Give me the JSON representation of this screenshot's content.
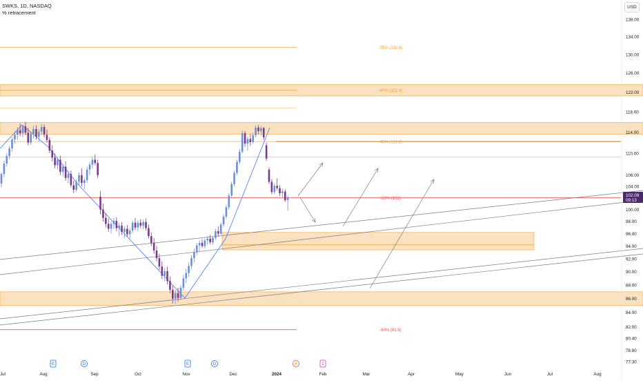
{
  "header": {
    "symbol": "SWKS, 1D, NASDAQ",
    "indicator": "% retracement"
  },
  "currency_button": "USD",
  "last_price": {
    "value": "102.09",
    "countdown": "09:13",
    "color": "#4a2a6b"
  },
  "colors": {
    "up": "#6c8fd8",
    "down": "#7a3a8a",
    "zone_fill": "#f5c98a",
    "zone_stroke": "#f0a030",
    "fib_line": "#f2b24a",
    "fib_label": "#f0a030",
    "red_level": "#f05050",
    "trend_line": "#787b86",
    "arrow": "#787b86",
    "zigzag": "#2962ff",
    "event_earnings": "#2a6fd6",
    "event_split": "#e040a0"
  },
  "chart_data": {
    "type": "candlestick",
    "y_axis": {
      "min": 76.5,
      "max": 140,
      "scale": "log",
      "tick_labels": [
        "138.00",
        "134.00",
        "130.00",
        "126.00",
        "122.00",
        "118.00",
        "114.00",
        "110.00",
        "106.00",
        "104.00",
        "102.00",
        "100.00",
        "98.00",
        "96.00",
        "94.00",
        "92.00",
        "90.00",
        "88.00",
        "86.00",
        "84.00",
        "82.00",
        "80.40",
        "78.80",
        "77.30"
      ]
    },
    "x_axis": {
      "tick_labels": [
        "Jul",
        "Aug",
        "Sep",
        "Oct",
        "Nov",
        "Dec",
        "2024",
        "Feb",
        "Mar",
        "Apr",
        "May",
        "Jun",
        "Jul",
        "Aug"
      ]
    },
    "fib_levels": [
      {
        "label": "-35% (131.6)",
        "price": 131.6
      },
      {
        "label": "-40% (122.4)",
        "price": 122.4
      },
      {
        "label": "-45% (112.2)",
        "price": 112.2
      },
      {
        "label": "-50% (102)",
        "price": 102.0
      },
      {
        "label": "-60% (81.6)",
        "price": 81.6
      }
    ],
    "zones": [
      {
        "from": 121.2,
        "to": 123.6
      },
      {
        "from": 113.6,
        "to": 115.9
      },
      {
        "from": 93.4,
        "to": 96.2
      },
      {
        "from": 85.0,
        "to": 87.0
      }
    ],
    "events": [
      "E",
      "D",
      "E",
      "D",
      "⚡",
      "↧"
    ],
    "candles": [
      {
        "o": 104.5,
        "h": 106.5,
        "l": 103.8,
        "c": 106.2
      },
      {
        "o": 106.2,
        "h": 108.6,
        "l": 105.6,
        "c": 108.1
      },
      {
        "o": 108.1,
        "h": 110.0,
        "l": 107.5,
        "c": 109.5
      },
      {
        "o": 109.5,
        "h": 111.4,
        "l": 108.9,
        "c": 110.9
      },
      {
        "o": 110.9,
        "h": 113.0,
        "l": 110.3,
        "c": 112.6
      },
      {
        "o": 112.6,
        "h": 114.2,
        "l": 111.8,
        "c": 113.5
      },
      {
        "o": 113.5,
        "h": 115.0,
        "l": 112.5,
        "c": 114.4
      },
      {
        "o": 114.4,
        "h": 115.7,
        "l": 113.2,
        "c": 113.8
      },
      {
        "o": 113.8,
        "h": 115.4,
        "l": 113.0,
        "c": 115.1
      },
      {
        "o": 115.1,
        "h": 116.0,
        "l": 113.4,
        "c": 113.9
      },
      {
        "o": 113.9,
        "h": 114.8,
        "l": 111.5,
        "c": 112.0
      },
      {
        "o": 112.0,
        "h": 114.2,
        "l": 111.6,
        "c": 113.7
      },
      {
        "o": 113.7,
        "h": 115.2,
        "l": 112.8,
        "c": 114.6
      },
      {
        "o": 114.6,
        "h": 115.3,
        "l": 112.6,
        "c": 113.1
      },
      {
        "o": 113.1,
        "h": 114.6,
        "l": 112.2,
        "c": 114.1
      },
      {
        "o": 114.1,
        "h": 115.6,
        "l": 113.4,
        "c": 115.0
      },
      {
        "o": 115.0,
        "h": 115.5,
        "l": 113.0,
        "c": 113.5
      },
      {
        "o": 113.5,
        "h": 114.5,
        "l": 112.0,
        "c": 112.5
      },
      {
        "o": 112.5,
        "h": 113.0,
        "l": 110.0,
        "c": 110.5
      },
      {
        "o": 110.5,
        "h": 111.5,
        "l": 108.5,
        "c": 109.2
      },
      {
        "o": 109.2,
        "h": 110.0,
        "l": 107.2,
        "c": 107.8
      },
      {
        "o": 107.8,
        "h": 109.2,
        "l": 107.0,
        "c": 108.8
      },
      {
        "o": 108.8,
        "h": 109.5,
        "l": 106.0,
        "c": 106.6
      },
      {
        "o": 106.6,
        "h": 108.0,
        "l": 105.8,
        "c": 107.5
      },
      {
        "o": 107.5,
        "h": 108.5,
        "l": 105.0,
        "c": 105.5
      },
      {
        "o": 105.5,
        "h": 106.8,
        "l": 104.5,
        "c": 106.2
      },
      {
        "o": 106.2,
        "h": 106.8,
        "l": 103.8,
        "c": 104.2
      },
      {
        "o": 104.2,
        "h": 105.0,
        "l": 102.8,
        "c": 103.4
      },
      {
        "o": 103.4,
        "h": 105.2,
        "l": 103.0,
        "c": 104.8
      },
      {
        "o": 104.8,
        "h": 106.5,
        "l": 104.2,
        "c": 106.0
      },
      {
        "o": 106.0,
        "h": 107.2,
        "l": 104.0,
        "c": 104.6
      },
      {
        "o": 104.6,
        "h": 105.5,
        "l": 103.5,
        "c": 105.1
      },
      {
        "o": 105.1,
        "h": 107.5,
        "l": 104.6,
        "c": 107.0
      },
      {
        "o": 107.0,
        "h": 108.4,
        "l": 106.0,
        "c": 107.9
      },
      {
        "o": 107.9,
        "h": 109.4,
        "l": 107.2,
        "c": 108.8
      },
      {
        "o": 108.8,
        "h": 109.8,
        "l": 107.8,
        "c": 108.2
      },
      {
        "o": 108.2,
        "h": 108.8,
        "l": 105.5,
        "c": 106.0
      },
      {
        "o": 102.2,
        "h": 103.2,
        "l": 99.2,
        "c": 100.0
      },
      {
        "o": 100.0,
        "h": 101.0,
        "l": 98.0,
        "c": 98.6
      },
      {
        "o": 98.6,
        "h": 99.4,
        "l": 97.0,
        "c": 97.6
      },
      {
        "o": 97.6,
        "h": 98.5,
        "l": 96.3,
        "c": 96.8
      },
      {
        "o": 96.8,
        "h": 98.0,
        "l": 96.0,
        "c": 97.6
      },
      {
        "o": 97.6,
        "h": 98.6,
        "l": 96.8,
        "c": 98.1
      },
      {
        "o": 98.1,
        "h": 98.7,
        "l": 96.4,
        "c": 96.9
      },
      {
        "o": 96.9,
        "h": 97.8,
        "l": 95.6,
        "c": 97.3
      },
      {
        "o": 97.3,
        "h": 97.9,
        "l": 95.8,
        "c": 96.3
      },
      {
        "o": 96.3,
        "h": 97.2,
        "l": 95.3,
        "c": 96.8
      },
      {
        "o": 96.8,
        "h": 97.4,
        "l": 95.5,
        "c": 95.9
      },
      {
        "o": 95.9,
        "h": 96.9,
        "l": 95.2,
        "c": 96.5
      },
      {
        "o": 96.5,
        "h": 98.2,
        "l": 96.1,
        "c": 97.8
      },
      {
        "o": 97.8,
        "h": 98.6,
        "l": 96.6,
        "c": 97.0
      },
      {
        "o": 97.0,
        "h": 98.2,
        "l": 96.4,
        "c": 97.8
      },
      {
        "o": 97.8,
        "h": 98.4,
        "l": 96.9,
        "c": 97.3
      },
      {
        "o": 97.3,
        "h": 98.3,
        "l": 96.7,
        "c": 97.9
      },
      {
        "o": 97.9,
        "h": 98.5,
        "l": 96.5,
        "c": 96.9
      },
      {
        "o": 96.9,
        "h": 97.5,
        "l": 95.2,
        "c": 95.6
      },
      {
        "o": 95.6,
        "h": 96.2,
        "l": 94.0,
        "c": 94.5
      },
      {
        "o": 94.5,
        "h": 95.3,
        "l": 92.8,
        "c": 93.3
      },
      {
        "o": 93.3,
        "h": 94.0,
        "l": 91.6,
        "c": 92.1
      },
      {
        "o": 92.1,
        "h": 92.8,
        "l": 90.3,
        "c": 90.8
      },
      {
        "o": 90.8,
        "h": 91.6,
        "l": 88.9,
        "c": 89.4
      },
      {
        "o": 89.4,
        "h": 90.6,
        "l": 88.6,
        "c": 90.1
      },
      {
        "o": 90.1,
        "h": 90.8,
        "l": 88.1,
        "c": 88.6
      },
      {
        "o": 88.6,
        "h": 89.3,
        "l": 86.8,
        "c": 87.3
      },
      {
        "o": 87.3,
        "h": 87.9,
        "l": 85.3,
        "c": 86.0
      },
      {
        "o": 86.0,
        "h": 87.3,
        "l": 85.2,
        "c": 86.8
      },
      {
        "o": 86.8,
        "h": 87.6,
        "l": 85.6,
        "c": 86.1
      },
      {
        "o": 86.1,
        "h": 88.0,
        "l": 85.8,
        "c": 87.6
      },
      {
        "o": 87.6,
        "h": 89.5,
        "l": 87.2,
        "c": 89.0
      },
      {
        "o": 89.0,
        "h": 90.5,
        "l": 88.3,
        "c": 89.8
      },
      {
        "o": 89.8,
        "h": 91.4,
        "l": 89.2,
        "c": 90.9
      },
      {
        "o": 90.9,
        "h": 92.6,
        "l": 90.4,
        "c": 92.1
      },
      {
        "o": 92.1,
        "h": 93.6,
        "l": 91.4,
        "c": 93.0
      },
      {
        "o": 93.0,
        "h": 94.5,
        "l": 92.6,
        "c": 94.1
      },
      {
        "o": 94.1,
        "h": 94.9,
        "l": 93.2,
        "c": 94.5
      },
      {
        "o": 94.5,
        "h": 95.1,
        "l": 93.7,
        "c": 94.0
      },
      {
        "o": 94.0,
        "h": 95.2,
        "l": 93.6,
        "c": 94.9
      },
      {
        "o": 94.9,
        "h": 95.6,
        "l": 94.2,
        "c": 95.2
      },
      {
        "o": 95.2,
        "h": 95.8,
        "l": 94.3,
        "c": 94.6
      },
      {
        "o": 94.6,
        "h": 95.6,
        "l": 94.2,
        "c": 95.3
      },
      {
        "o": 95.3,
        "h": 96.8,
        "l": 95.0,
        "c": 96.4
      },
      {
        "o": 96.4,
        "h": 97.2,
        "l": 95.5,
        "c": 96.0
      },
      {
        "o": 96.0,
        "h": 97.8,
        "l": 95.8,
        "c": 97.5
      },
      {
        "o": 97.5,
        "h": 99.2,
        "l": 97.1,
        "c": 98.8
      },
      {
        "o": 98.8,
        "h": 100.8,
        "l": 98.4,
        "c": 100.4
      },
      {
        "o": 100.4,
        "h": 102.8,
        "l": 100.0,
        "c": 102.4
      },
      {
        "o": 102.4,
        "h": 104.8,
        "l": 102.0,
        "c": 104.4
      },
      {
        "o": 104.4,
        "h": 106.8,
        "l": 104.0,
        "c": 106.4
      },
      {
        "o": 106.4,
        "h": 108.8,
        "l": 106.0,
        "c": 108.4
      },
      {
        "o": 108.4,
        "h": 110.8,
        "l": 108.0,
        "c": 110.3
      },
      {
        "o": 110.3,
        "h": 114.3,
        "l": 110.0,
        "c": 113.8
      },
      {
        "o": 113.8,
        "h": 114.2,
        "l": 111.2,
        "c": 111.8
      },
      {
        "o": 111.8,
        "h": 113.2,
        "l": 110.5,
        "c": 112.7
      },
      {
        "o": 112.7,
        "h": 113.6,
        "l": 111.4,
        "c": 112.1
      },
      {
        "o": 112.1,
        "h": 113.9,
        "l": 111.8,
        "c": 113.4
      },
      {
        "o": 113.4,
        "h": 115.3,
        "l": 113.0,
        "c": 114.9
      },
      {
        "o": 114.9,
        "h": 115.4,
        "l": 113.6,
        "c": 114.2
      },
      {
        "o": 114.2,
        "h": 115.2,
        "l": 113.4,
        "c": 114.8
      },
      {
        "o": 114.8,
        "h": 115.0,
        "l": 112.5,
        "c": 113.0
      },
      {
        "o": 111.5,
        "h": 112.0,
        "l": 108.6,
        "c": 109.0
      },
      {
        "o": 107.0,
        "h": 107.4,
        "l": 104.4,
        "c": 104.8
      },
      {
        "o": 104.8,
        "h": 105.3,
        "l": 102.6,
        "c": 103.0
      },
      {
        "o": 103.0,
        "h": 104.6,
        "l": 102.6,
        "c": 104.1
      },
      {
        "o": 104.1,
        "h": 105.4,
        "l": 103.3,
        "c": 103.7
      },
      {
        "o": 103.7,
        "h": 104.2,
        "l": 102.3,
        "c": 102.8
      },
      {
        "o": 102.8,
        "h": 103.6,
        "l": 102.1,
        "c": 103.1
      },
      {
        "o": 103.1,
        "h": 103.5,
        "l": 101.3,
        "c": 101.6
      },
      {
        "o": 101.6,
        "h": 102.4,
        "l": 99.8,
        "c": 102.09
      }
    ]
  }
}
